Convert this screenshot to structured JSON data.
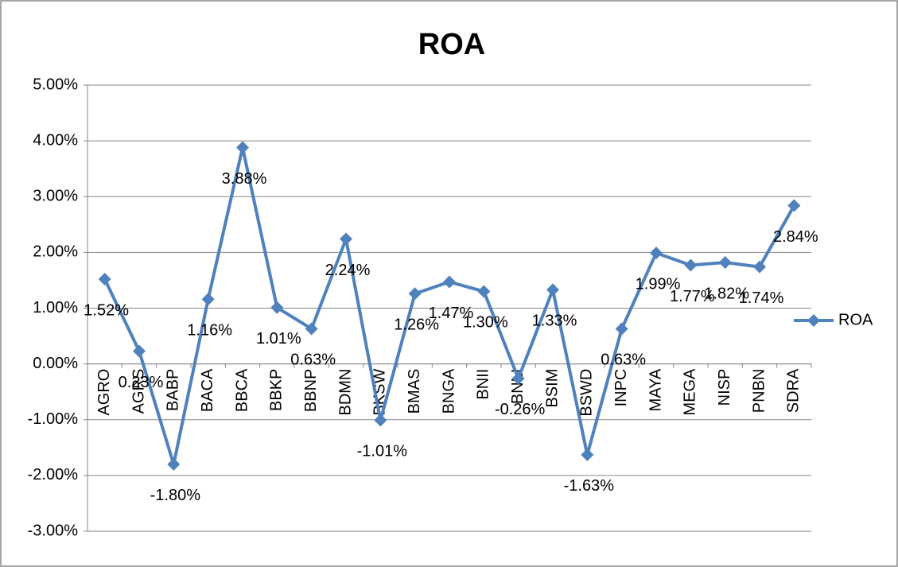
{
  "chart_data": {
    "type": "line",
    "title": "ROA",
    "categories": [
      "AGRO",
      "AGRS",
      "BABP",
      "BACA",
      "BBCA",
      "BBKP",
      "BBNP",
      "BDMN",
      "BKSW",
      "BMAS",
      "BNGA",
      "BNII",
      "BNLI",
      "BSIM",
      "BSWD",
      "INPC",
      "MAYA",
      "MEGA",
      "NISP",
      "PNBN",
      "SDRA"
    ],
    "series": [
      {
        "name": "ROA",
        "color": "#4f81bd",
        "values": [
          1.52,
          0.23,
          -1.8,
          1.16,
          3.88,
          1.01,
          0.63,
          2.24,
          -1.01,
          1.26,
          1.47,
          1.3,
          -0.26,
          1.33,
          -1.63,
          0.63,
          1.99,
          1.77,
          1.82,
          1.74,
          2.84
        ],
        "value_labels": [
          "1.52%",
          "0.23%",
          "-1.80%",
          "1.16%",
          "3.88%",
          "1.01%",
          "0.63%",
          "2.24%",
          "-1.01%",
          "1.26%",
          "1.47%",
          "1.30%",
          "-0.26%",
          "1.33%",
          "-1.63%",
          "0.63%",
          "1.99%",
          "1.77%",
          "1.82%",
          "1.74%",
          "2.84%"
        ]
      }
    ],
    "ylim": [
      -3,
      5
    ],
    "yticks": [
      {
        "value": -3,
        "label": "-3.00%"
      },
      {
        "value": -2,
        "label": "-2.00%"
      },
      {
        "value": -1,
        "label": "-1.00%"
      },
      {
        "value": 0,
        "label": "0.00%"
      },
      {
        "value": 1,
        "label": "1.00%"
      },
      {
        "value": 2,
        "label": "2.00%"
      },
      {
        "value": 3,
        "label": "3.00%"
      },
      {
        "value": 4,
        "label": "4.00%"
      },
      {
        "value": 5,
        "label": "5.00%"
      }
    ],
    "grid": true,
    "legend": "right"
  }
}
